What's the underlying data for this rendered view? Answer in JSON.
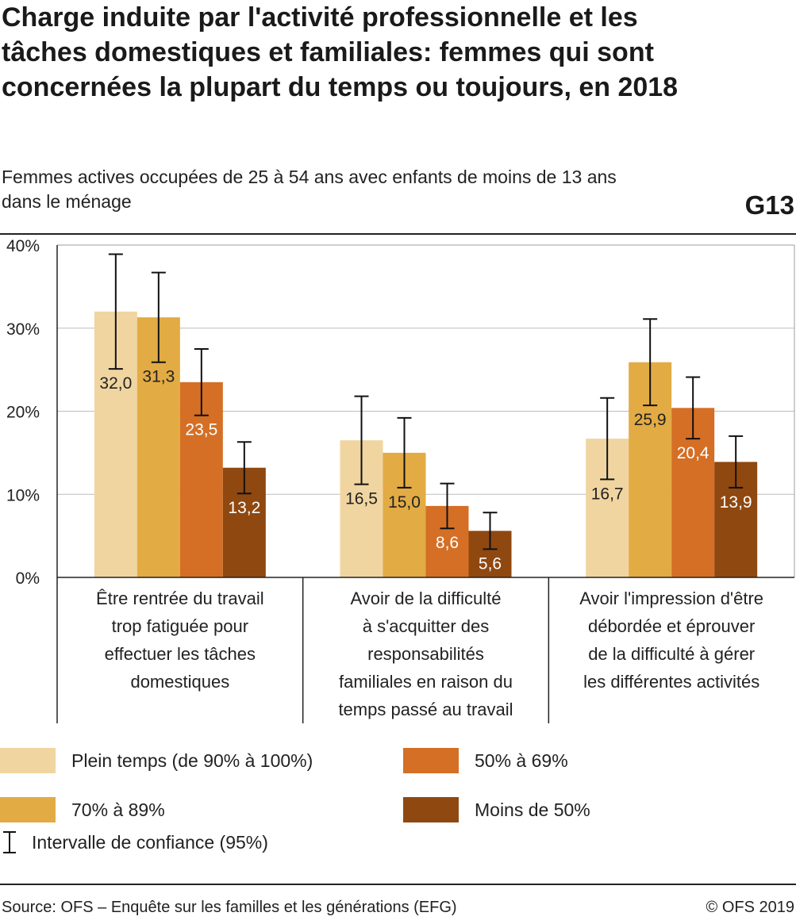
{
  "title": "Charge induite par l'activité professionnelle et les tâches domestiques et familiales: femmes qui sont concernées la plupart du temps ou toujours, en 2018",
  "subtitle": "Femmes actives occupées de 25 à 54 ans avec enfants de moins de 13 ans dans le ménage",
  "chart_code": "G13",
  "legend": {
    "ci_label": "Intervalle de confiance (95%)"
  },
  "footer": {
    "source": "Source: OFS – Enquête sur les familles et les générations (EFG)",
    "copyright": "© OFS 2019"
  },
  "chart_data": {
    "type": "bar",
    "categories": [
      [
        "Être rentrée du travail",
        "trop fatiguée pour",
        "effectuer les tâches",
        "domestiques"
      ],
      [
        "Avoir de la difficulté",
        "à s'acquitter des",
        "responsabilités",
        "familiales en raison du",
        "temps passé au travail"
      ],
      [
        "Avoir l'impression d'être",
        "débordée et éprouver",
        "de la difficulté à gérer",
        "les différentes activités"
      ]
    ],
    "series": [
      {
        "name": "Plein temps (de 90% à 100%)",
        "color": "#f0d5a0",
        "values": [
          32.0,
          16.5,
          16.7
        ],
        "labels": [
          "32,0",
          "16,5",
          "16,7"
        ],
        "ci_low": [
          25.1,
          11.2,
          11.8
        ],
        "ci_high": [
          38.9,
          21.8,
          21.6
        ]
      },
      {
        "name": "70% à 89%",
        "color": "#e2ab44",
        "values": [
          31.3,
          15.0,
          25.9
        ],
        "labels": [
          "31,3",
          "15,0",
          "25,9"
        ],
        "ci_low": [
          25.9,
          10.8,
          20.7
        ],
        "ci_high": [
          36.7,
          19.2,
          31.1
        ]
      },
      {
        "name": "50% à 69%",
        "color": "#d46f25",
        "values": [
          23.5,
          8.6,
          20.4
        ],
        "labels": [
          "23,5",
          "8,6",
          "20,4"
        ],
        "ci_low": [
          19.5,
          5.9,
          16.7
        ],
        "ci_high": [
          27.5,
          11.3,
          24.1
        ]
      },
      {
        "name": "Moins de 50%",
        "color": "#8f4810",
        "values": [
          13.2,
          5.6,
          13.9
        ],
        "labels": [
          "13,2",
          "5,6",
          "13,9"
        ],
        "ci_low": [
          10.1,
          3.4,
          10.8
        ],
        "ci_high": [
          16.3,
          7.8,
          17.0
        ]
      }
    ],
    "ylim": [
      0,
      40
    ],
    "yticks": [
      0,
      10,
      20,
      30,
      40
    ],
    "ytick_labels": [
      "0%",
      "10%",
      "20%",
      "30%",
      "40%"
    ],
    "grid": true,
    "legend_position": "bottom"
  }
}
